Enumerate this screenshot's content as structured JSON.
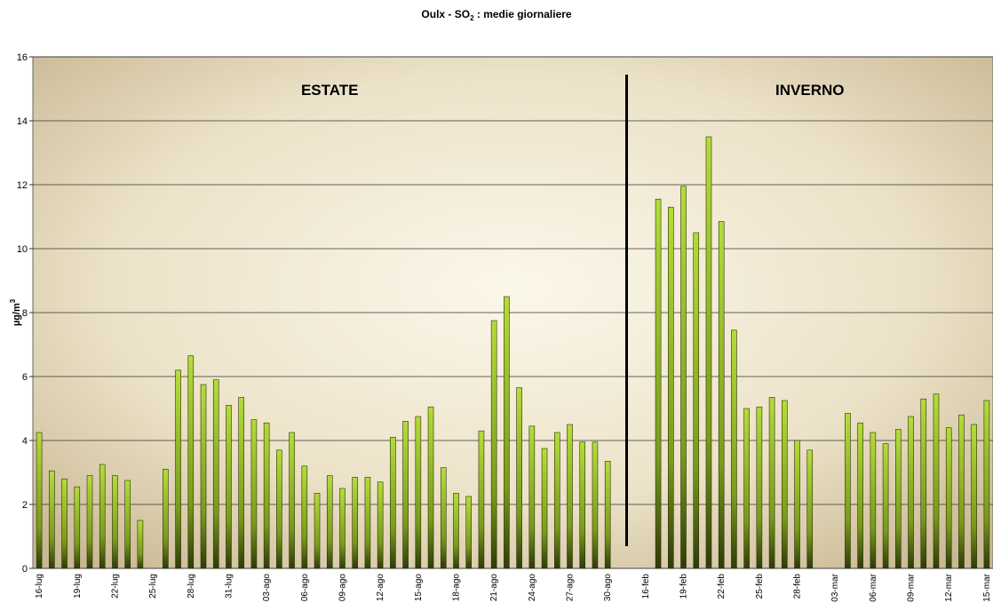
{
  "chart_data": {
    "type": "bar",
    "title_parts": [
      "Oulx - SO",
      "2",
      " : medie giornaliere"
    ],
    "y_label_parts": [
      "µg/m",
      "3"
    ],
    "annotations": [
      {
        "text": "ESTATE",
        "color": "#e8161b"
      },
      {
        "text": "INVERNO",
        "color": "#1f6fc4"
      }
    ],
    "categories": [
      "16-lug",
      null,
      null,
      "19-lug",
      null,
      null,
      "22-lug",
      null,
      null,
      "25-lug",
      null,
      null,
      "28-lug",
      null,
      null,
      "31-lug",
      null,
      null,
      "03-ago",
      null,
      null,
      "06-ago",
      null,
      null,
      "09-ago",
      null,
      null,
      "12-ago",
      null,
      null,
      "15-ago",
      null,
      null,
      "18-ago",
      null,
      null,
      "21-ago",
      null,
      null,
      "24-ago",
      null,
      null,
      "27-ago",
      null,
      null,
      "30-ago",
      null,
      null,
      "16-feb",
      null,
      null,
      "19-feb",
      null,
      null,
      "22-feb",
      null,
      null,
      "25-feb",
      null,
      null,
      "28-feb",
      null,
      null,
      "03-mar",
      null,
      null,
      "06-mar",
      null,
      null,
      "09-mar",
      null,
      null,
      "12-mar",
      null,
      null,
      "15-mar"
    ],
    "values": [
      4.25,
      3.05,
      2.8,
      2.55,
      2.9,
      3.25,
      2.9,
      2.75,
      1.5,
      null,
      3.1,
      6.2,
      6.65,
      5.75,
      5.9,
      5.1,
      5.35,
      4.65,
      4.55,
      3.7,
      4.25,
      3.2,
      2.35,
      2.9,
      2.5,
      2.85,
      2.85,
      2.7,
      4.1,
      4.6,
      4.75,
      5.05,
      3.15,
      2.35,
      2.25,
      4.3,
      7.75,
      8.5,
      5.65,
      4.45,
      3.75,
      4.25,
      4.5,
      3.95,
      3.95,
      3.35,
      null,
      null,
      null,
      11.55,
      11.3,
      11.95,
      10.5,
      13.5,
      10.85,
      7.45,
      5.0,
      5.05,
      5.35,
      5.25,
      4.0,
      3.7,
      null,
      null,
      4.85,
      4.55,
      4.25,
      3.9,
      4.35,
      4.75,
      5.3,
      5.45,
      4.4,
      4.8,
      4.5,
      5.25
    ],
    "color": "#9acd32",
    "ylim": [
      0,
      16
    ],
    "yticks": [
      0,
      2,
      4,
      6,
      8,
      10,
      12,
      14,
      16
    ],
    "grid": true
  }
}
